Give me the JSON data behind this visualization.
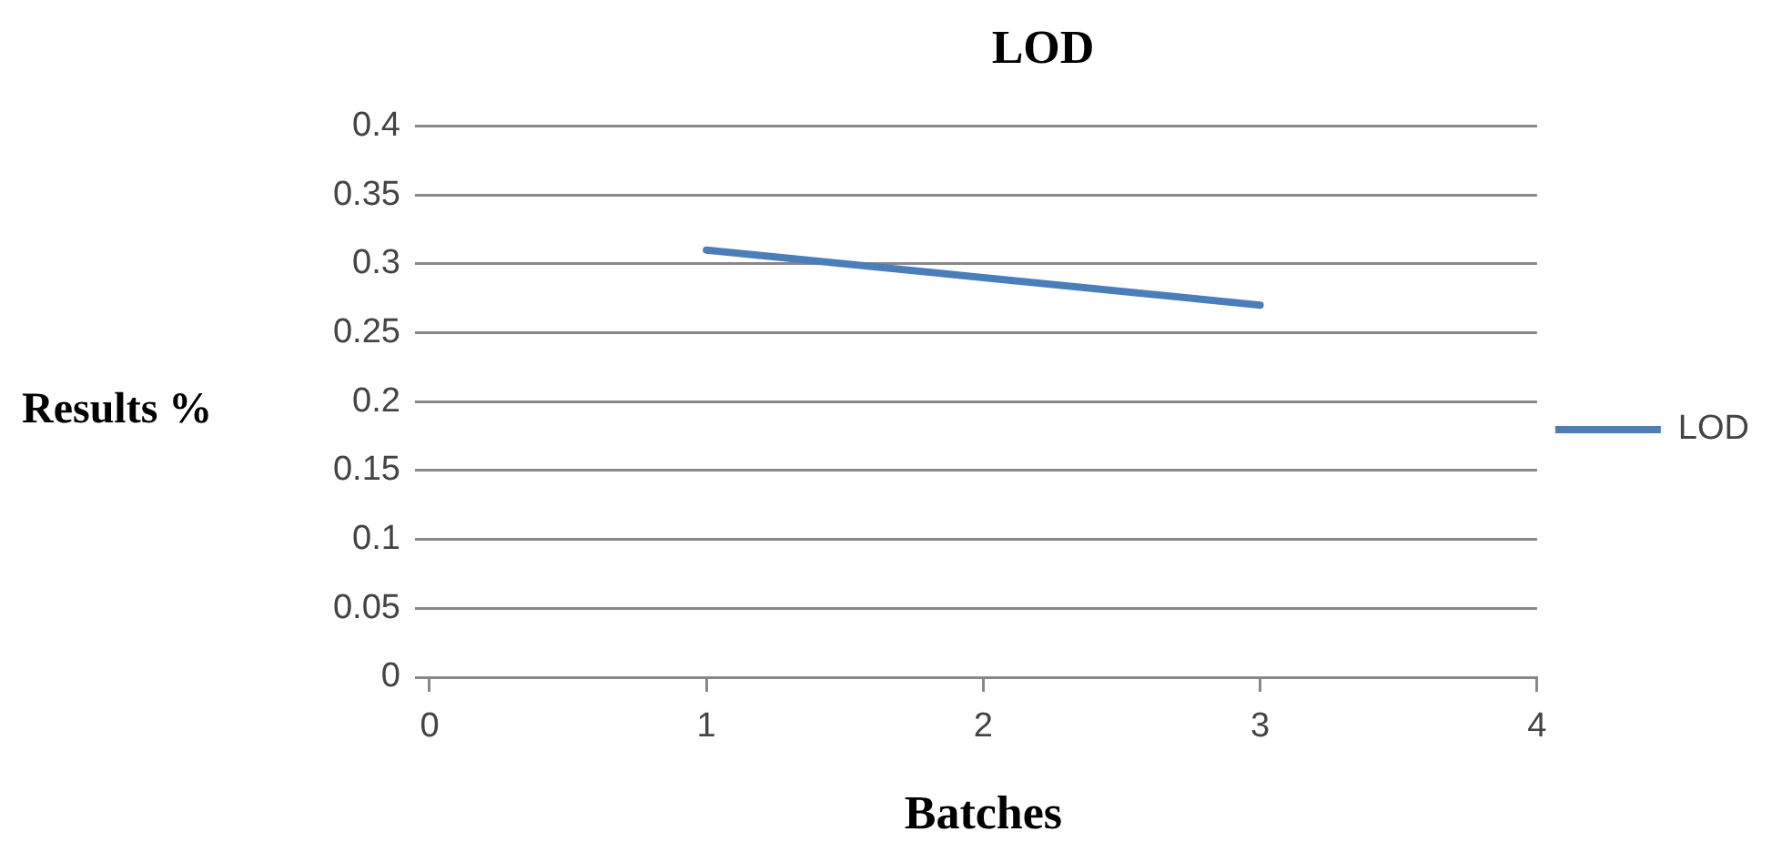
{
  "chart_data": {
    "type": "line",
    "title": "LOD",
    "xlabel": "Batches",
    "ylabel": "Results %",
    "x": [
      1,
      2,
      3
    ],
    "series": [
      {
        "name": "LOD",
        "color": "#4a7ebb",
        "values": [
          0.31,
          0.29,
          0.27
        ]
      }
    ],
    "xlim": [
      0,
      4
    ],
    "xticks": [
      0,
      1,
      2,
      3,
      4
    ],
    "ylim": [
      0,
      0.4
    ],
    "yticks": [
      0,
      0.05,
      0.1,
      0.15,
      0.2,
      0.25,
      0.3,
      0.35,
      0.4
    ],
    "grid": "y",
    "legend": "right",
    "marker": "none",
    "line_style": "solid"
  }
}
